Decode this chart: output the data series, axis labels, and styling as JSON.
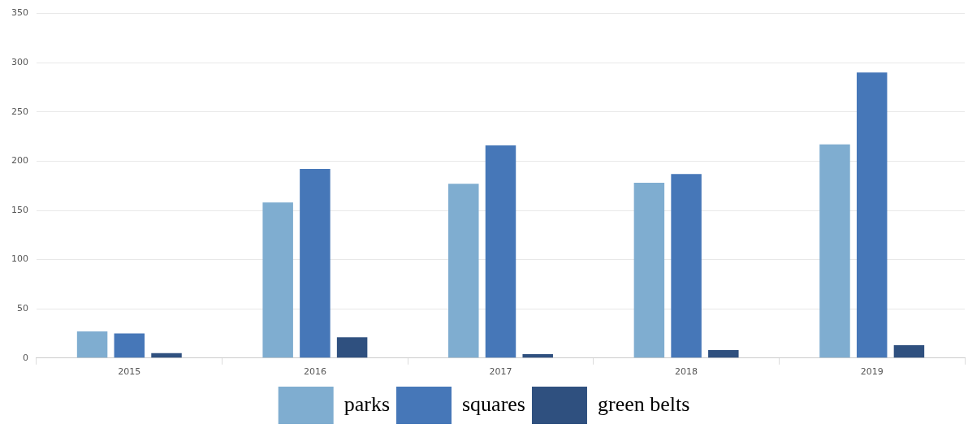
{
  "chart_data": {
    "type": "bar",
    "categories": [
      "2015",
      "2016",
      "2017",
      "2018",
      "2019"
    ],
    "series": [
      {
        "name": "parks",
        "color": "#7fadd0",
        "values": [
          27,
          158,
          177,
          178,
          217
        ]
      },
      {
        "name": "squares",
        "color": "#4677b8",
        "values": [
          25,
          192,
          216,
          187,
          290
        ]
      },
      {
        "name": "green belts",
        "color": "#2f507f",
        "values": [
          5,
          21,
          4,
          8,
          13
        ]
      }
    ],
    "ylim": [
      0,
      350
    ],
    "yticks": [
      0,
      50,
      100,
      150,
      200,
      250,
      300,
      350
    ],
    "grid": "y",
    "legend": "bottom"
  }
}
